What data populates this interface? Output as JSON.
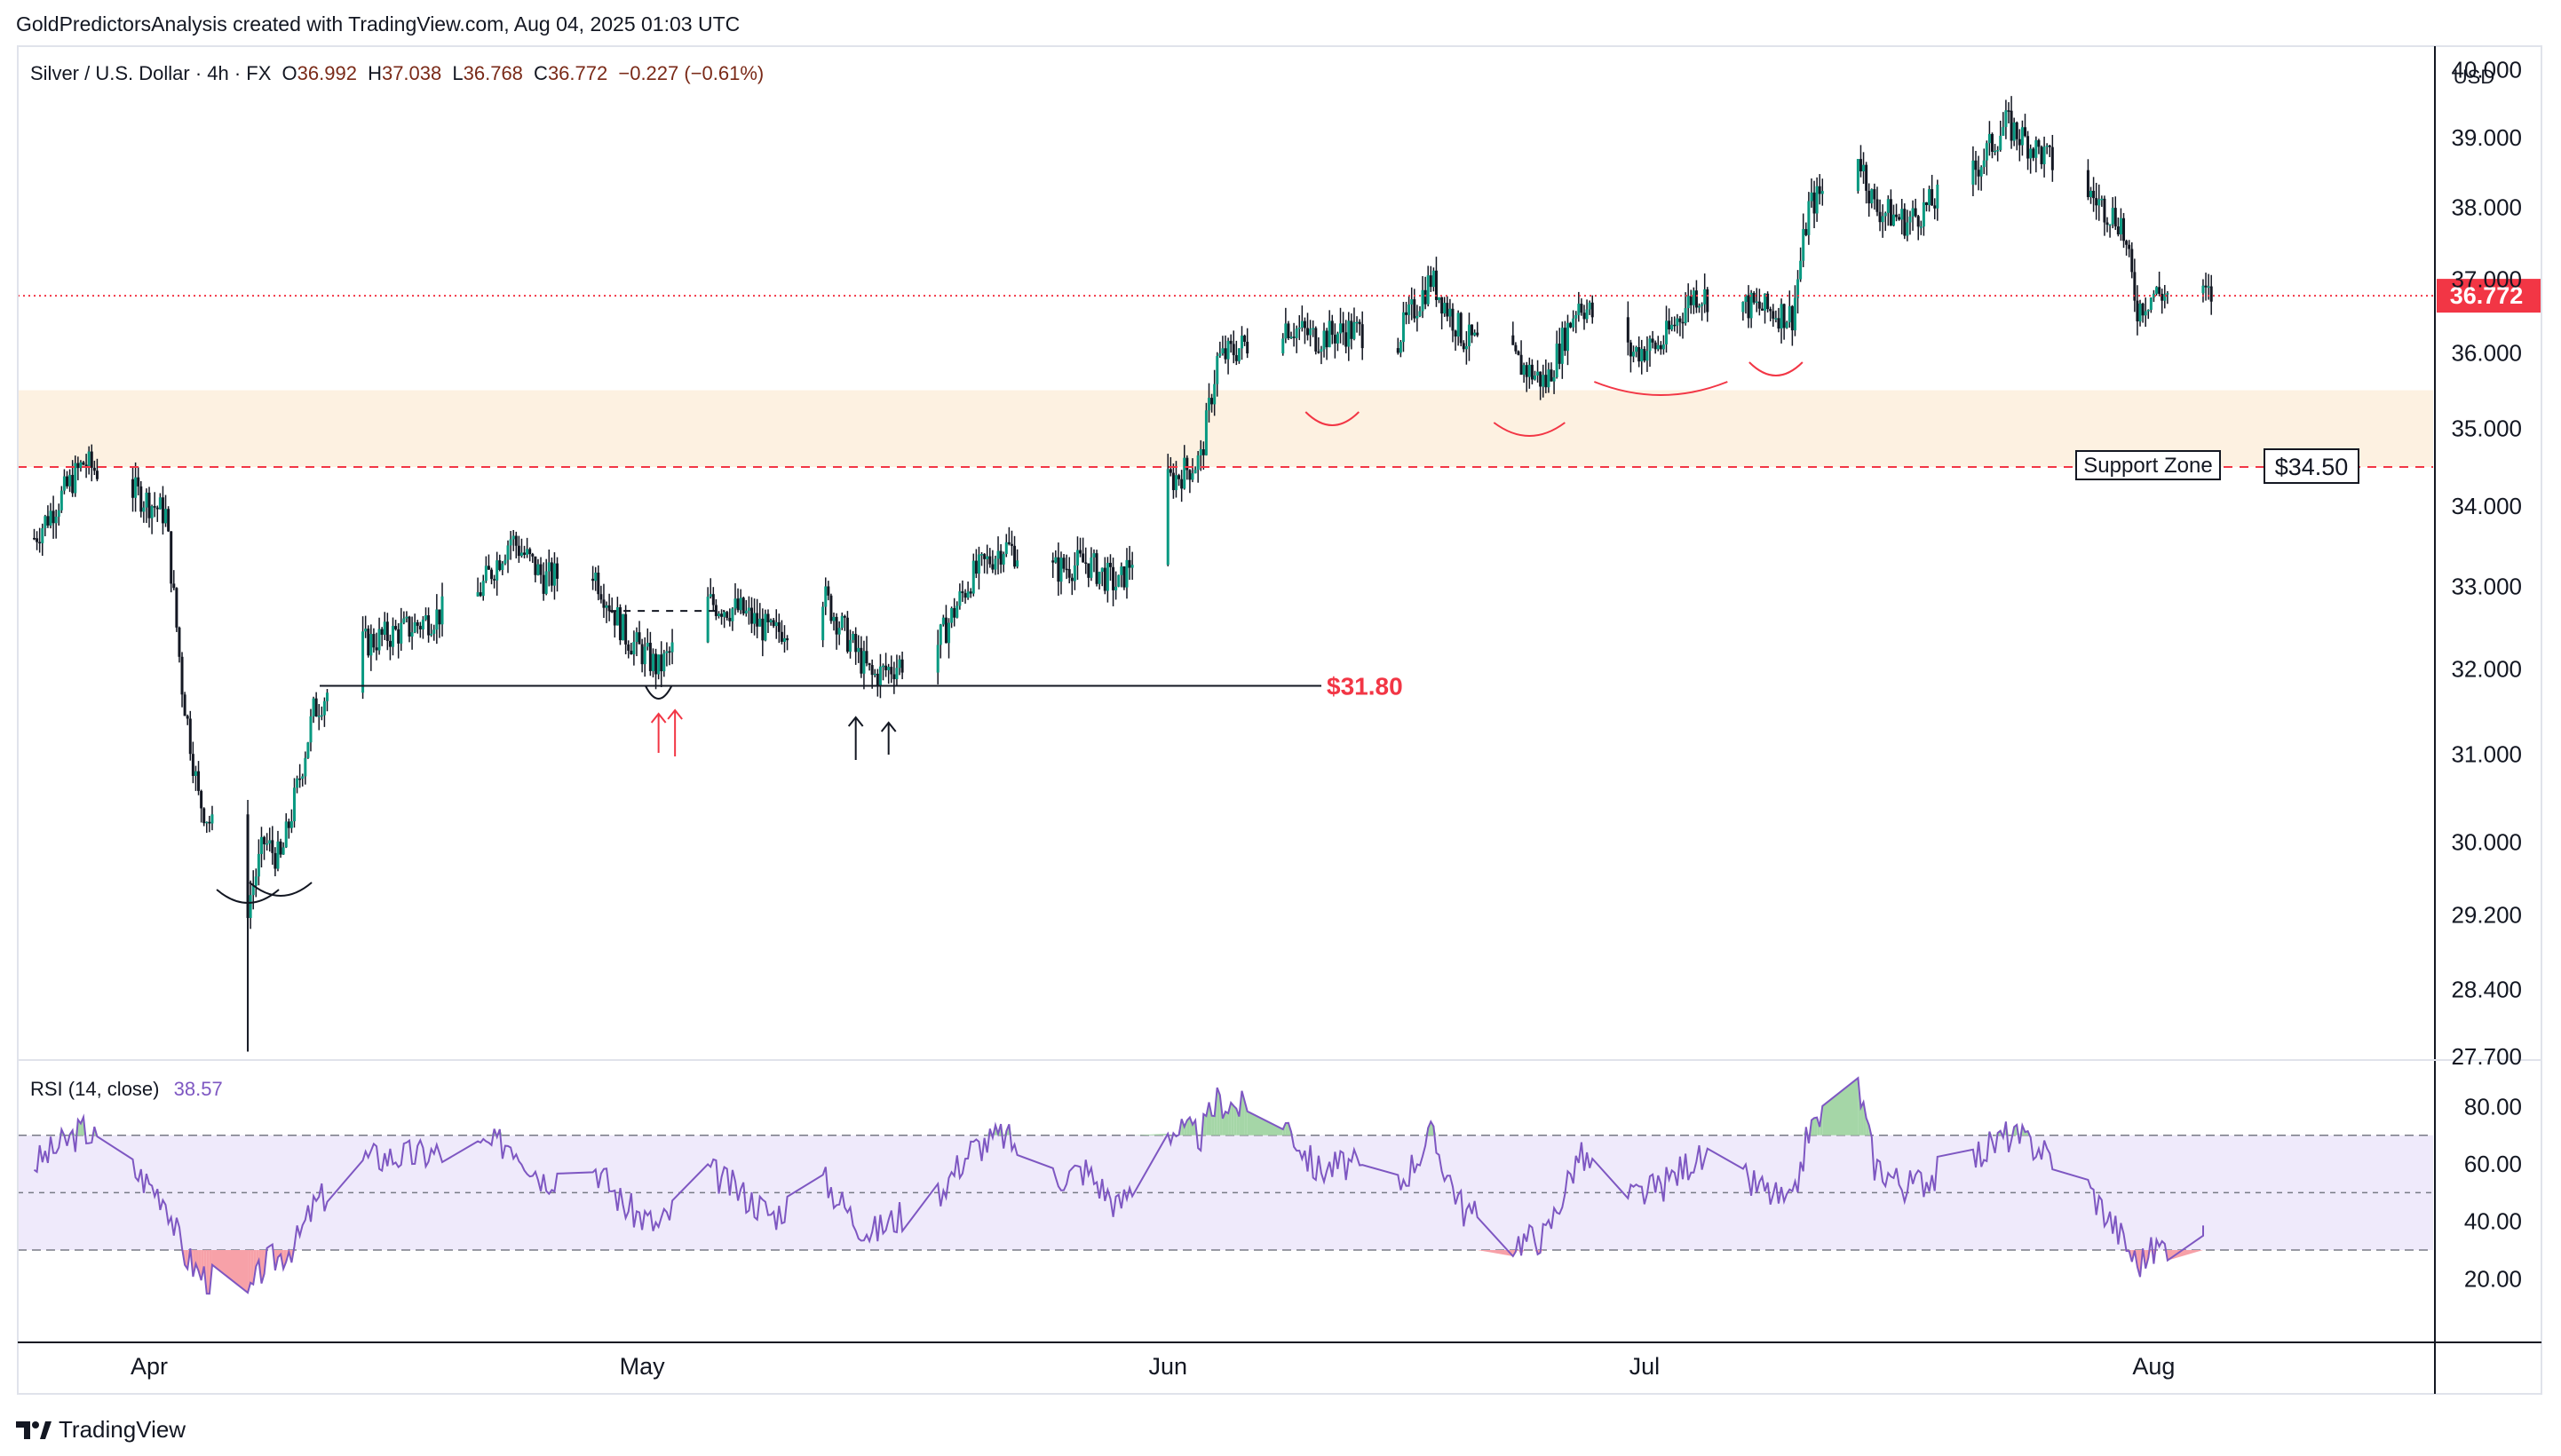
{
  "caption": "GoldPredictorsAnalysis created with TradingView.com, Aug 04, 2025 01:03 UTC",
  "legend": {
    "symbol": "Silver / U.S. Dollar · 4h · FX",
    "open_label": "O",
    "open": "36.992",
    "high_label": "H",
    "high": "37.038",
    "low_label": "L",
    "low": "36.768",
    "close_label": "C",
    "close": "36.772",
    "change": "−0.227 (−0.61%)"
  },
  "rsi_legend": {
    "label": "RSI (14, close)",
    "value": "38.57"
  },
  "currency": "USD",
  "brand": "TradingView",
  "colors": {
    "up": "#089981",
    "down": "#f23645",
    "candle": "#131722",
    "support_zone": "#fdf1e1",
    "rsi_line": "#7e57c2",
    "rsi_band": "#efeafb",
    "price_line": "#f23645",
    "label_red": "#f23645"
  },
  "chart_data": [
    {
      "type": "candlestick",
      "title": "Silver / U.S. Dollar · 4h · FX",
      "x_ticks": [
        "Apr",
        "May",
        "Jun",
        "Jul",
        "Aug"
      ],
      "y_ticks": [
        "40.000",
        "39.000",
        "38.000",
        "37.000",
        "36.000",
        "35.000",
        "34.000",
        "33.000",
        "32.000",
        "31.000",
        "30.000",
        "29.200",
        "28.400",
        "27.700"
      ],
      "ylim": [
        27.7,
        40.3
      ],
      "y_scale": "log",
      "last_price": "36.772",
      "support_zone": {
        "label": "Support Zone",
        "low": 34.5,
        "high": 35.5
      },
      "levels": [
        {
          "label": "$34.50",
          "value": 34.5,
          "style": "dashed-red"
        },
        {
          "label": "$31.80",
          "value": 31.8,
          "style": "solid-black"
        }
      ],
      "close_path": [
        [
          "2025-03-25",
          33.6
        ],
        [
          "2025-03-28",
          34.55
        ],
        [
          "2025-03-31",
          34.2
        ],
        [
          "2025-04-02",
          33.9
        ],
        [
          "2025-04-03",
          31.8
        ],
        [
          "2025-04-04",
          30.5
        ],
        [
          "2025-04-07",
          29.3
        ],
        [
          "2025-04-08",
          30.0
        ],
        [
          "2025-04-09",
          29.8
        ],
        [
          "2025-04-10",
          30.6
        ],
        [
          "2025-04-11",
          31.5
        ],
        [
          "2025-04-14",
          32.3
        ],
        [
          "2025-04-17",
          32.5
        ],
        [
          "2025-04-21",
          32.9
        ],
        [
          "2025-04-23",
          33.6
        ],
        [
          "2025-04-25",
          33.1
        ],
        [
          "2025-04-28",
          33.2
        ],
        [
          "2025-04-30",
          32.4
        ],
        [
          "2025-05-02",
          32.0
        ],
        [
          "2025-05-05",
          32.8
        ],
        [
          "2025-05-07",
          32.7
        ],
        [
          "2025-05-09",
          32.4
        ],
        [
          "2025-05-12",
          32.9
        ],
        [
          "2025-05-14",
          32.2
        ],
        [
          "2025-05-15",
          31.9
        ],
        [
          "2025-05-19",
          32.3
        ],
        [
          "2025-05-21",
          33.1
        ],
        [
          "2025-05-23",
          33.5
        ],
        [
          "2025-05-26",
          33.2
        ],
        [
          "2025-05-28",
          33.3
        ],
        [
          "2025-05-30",
          33.0
        ],
        [
          "2025-06-02",
          34.3
        ],
        [
          "2025-06-04",
          34.6
        ],
        [
          "2025-06-05",
          35.9
        ],
        [
          "2025-06-09",
          36.4
        ],
        [
          "2025-06-11",
          36.2
        ],
        [
          "2025-06-13",
          36.3
        ],
        [
          "2025-06-16",
          36.2
        ],
        [
          "2025-06-18",
          37.0
        ],
        [
          "2025-06-20",
          36.2
        ],
        [
          "2025-06-23",
          35.9
        ],
        [
          "2025-06-25",
          35.6
        ],
        [
          "2025-06-27",
          36.7
        ],
        [
          "2025-06-30",
          36.0
        ],
        [
          "2025-07-02",
          36.1
        ],
        [
          "2025-07-04",
          36.8
        ],
        [
          "2025-07-08",
          36.6
        ],
        [
          "2025-07-10",
          36.5
        ],
        [
          "2025-07-11",
          38.0
        ],
        [
          "2025-07-14",
          38.8
        ],
        [
          "2025-07-15",
          38.0
        ],
        [
          "2025-07-17",
          37.8
        ],
        [
          "2025-07-21",
          38.5
        ],
        [
          "2025-07-23",
          39.2
        ],
        [
          "2025-07-25",
          38.8
        ],
        [
          "2025-07-28",
          38.2
        ],
        [
          "2025-07-30",
          37.8
        ],
        [
          "2025-07-31",
          36.6
        ],
        [
          "2025-08-01",
          36.8
        ],
        [
          "2025-08-04",
          36.77
        ]
      ]
    },
    {
      "type": "line",
      "title": "RSI (14, close)",
      "ylim": [
        0,
        95
      ],
      "y_ticks": [
        "80.00",
        "60.00",
        "40.00",
        "20.00"
      ],
      "bands": {
        "upper": 70,
        "middle": 50,
        "lower": 30
      },
      "last_value": "38.57",
      "series": [
        {
          "name": "RSI",
          "points": [
            [
              "2025-03-25",
              60
            ],
            [
              "2025-03-28",
              72
            ],
            [
              "2025-03-31",
              58
            ],
            [
              "2025-04-02",
              48
            ],
            [
              "2025-04-03",
              30
            ],
            [
              "2025-04-04",
              22
            ],
            [
              "2025-04-07",
              13
            ],
            [
              "2025-04-08",
              25
            ],
            [
              "2025-04-09",
              28
            ],
            [
              "2025-04-10",
              33
            ],
            [
              "2025-04-11",
              45
            ],
            [
              "2025-04-14",
              62
            ],
            [
              "2025-04-17",
              63
            ],
            [
              "2025-04-21",
              65
            ],
            [
              "2025-04-23",
              68
            ],
            [
              "2025-04-25",
              55
            ],
            [
              "2025-04-28",
              60
            ],
            [
              "2025-04-30",
              45
            ],
            [
              "2025-05-02",
              38
            ],
            [
              "2025-05-05",
              58
            ],
            [
              "2025-05-07",
              50
            ],
            [
              "2025-05-09",
              42
            ],
            [
              "2025-05-12",
              55
            ],
            [
              "2025-05-14",
              40
            ],
            [
              "2025-05-15",
              36
            ],
            [
              "2025-05-19",
              50
            ],
            [
              "2025-05-21",
              65
            ],
            [
              "2025-05-23",
              70
            ],
            [
              "2025-05-26",
              55
            ],
            [
              "2025-05-28",
              58
            ],
            [
              "2025-05-30",
              45
            ],
            [
              "2025-06-02",
              72
            ],
            [
              "2025-06-04",
              70
            ],
            [
              "2025-06-05",
              82
            ],
            [
              "2025-06-09",
              76
            ],
            [
              "2025-06-11",
              58
            ],
            [
              "2025-06-13",
              60
            ],
            [
              "2025-06-16",
              52
            ],
            [
              "2025-06-18",
              70
            ],
            [
              "2025-06-20",
              44
            ],
            [
              "2025-06-23",
              33
            ],
            [
              "2025-06-25",
              35
            ],
            [
              "2025-06-27",
              63
            ],
            [
              "2025-06-30",
              48
            ],
            [
              "2025-07-02",
              52
            ],
            [
              "2025-07-04",
              62
            ],
            [
              "2025-07-08",
              52
            ],
            [
              "2025-07-10",
              45
            ],
            [
              "2025-07-11",
              72
            ],
            [
              "2025-07-14",
              88
            ],
            [
              "2025-07-15",
              60
            ],
            [
              "2025-07-17",
              52
            ],
            [
              "2025-07-21",
              62
            ],
            [
              "2025-07-23",
              70
            ],
            [
              "2025-07-25",
              66
            ],
            [
              "2025-07-28",
              52
            ],
            [
              "2025-07-30",
              35
            ],
            [
              "2025-07-31",
              25
            ],
            [
              "2025-08-01",
              30
            ],
            [
              "2025-08-04",
              38.57
            ]
          ]
        }
      ]
    }
  ]
}
